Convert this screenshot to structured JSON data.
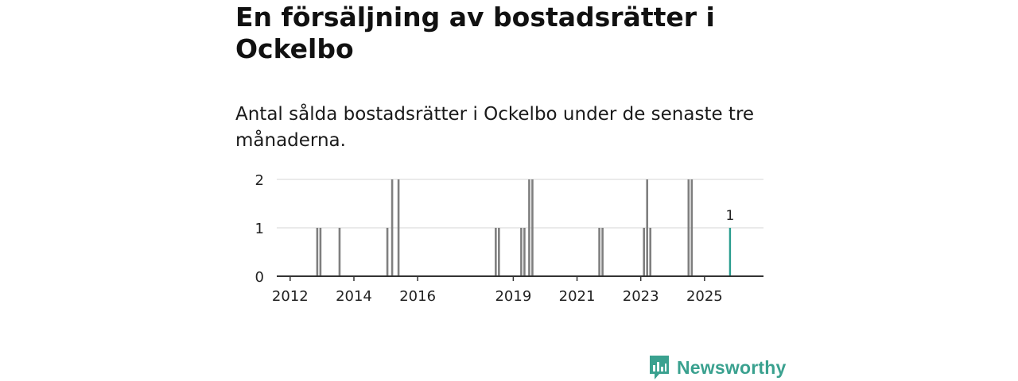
{
  "title": "En försäljning av bostadsrätter i Ockelbo",
  "subtitle": "Antal sålda bostadsrätter i Ockelbo under de senaste tre månaderna.",
  "brand": {
    "name": "Newsworthy",
    "color": "#3aa18f"
  },
  "colors": {
    "bars": "#7f7f7f",
    "highlight": "#2a9d8f",
    "axis": "#333333",
    "grid": "#dddddd"
  },
  "chart_data": {
    "type": "bar",
    "x_unit": "year",
    "ylim": [
      0,
      2
    ],
    "y_ticks": [
      "0",
      "1",
      "2"
    ],
    "x_ticks": [
      "2012",
      "2014",
      "2016",
      "2019",
      "2021",
      "2023",
      "2025"
    ],
    "grid": true,
    "values": [
      {
        "x": 2012.85,
        "y": 1
      },
      {
        "x": 2012.95,
        "y": 1
      },
      {
        "x": 2013.55,
        "y": 1
      },
      {
        "x": 2015.05,
        "y": 1
      },
      {
        "x": 2015.2,
        "y": 2
      },
      {
        "x": 2015.4,
        "y": 2
      },
      {
        "x": 2018.45,
        "y": 1
      },
      {
        "x": 2018.55,
        "y": 1
      },
      {
        "x": 2019.25,
        "y": 1
      },
      {
        "x": 2019.35,
        "y": 1
      },
      {
        "x": 2019.5,
        "y": 2
      },
      {
        "x": 2019.6,
        "y": 2
      },
      {
        "x": 2021.7,
        "y": 1
      },
      {
        "x": 2021.8,
        "y": 1
      },
      {
        "x": 2023.1,
        "y": 1
      },
      {
        "x": 2023.2,
        "y": 2
      },
      {
        "x": 2023.3,
        "y": 1
      },
      {
        "x": 2024.5,
        "y": 2
      },
      {
        "x": 2024.6,
        "y": 2
      }
    ],
    "highlight": {
      "x": 2025.8,
      "y": 1,
      "label": "1"
    }
  }
}
